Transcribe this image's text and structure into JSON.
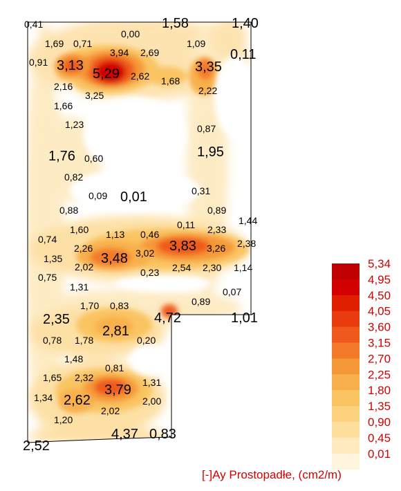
{
  "legend": {
    "title": "[-]Ay Prostopadłe, (cm2/m)",
    "levels": [
      {
        "label": "5,34",
        "color": "#c00000"
      },
      {
        "label": "4,95",
        "color": "#d20000"
      },
      {
        "label": "4,50",
        "color": "#e01e00"
      },
      {
        "label": "4,05",
        "color": "#e83c10"
      },
      {
        "label": "3,60",
        "color": "#ef5a1c"
      },
      {
        "label": "3,15",
        "color": "#f37a2a"
      },
      {
        "label": "2,70",
        "color": "#f59838"
      },
      {
        "label": "2,25",
        "color": "#f8b04c"
      },
      {
        "label": "1,80",
        "color": "#fac462"
      },
      {
        "label": "1,35",
        "color": "#fcd27e"
      },
      {
        "label": "0,90",
        "color": "#fddf9e"
      },
      {
        "label": "0,45",
        "color": "#feeabd"
      },
      {
        "label": "0,01",
        "color": "#fff5dc"
      }
    ]
  },
  "values": [
    "0,41",
    "1,58",
    "1,40",
    "1,69",
    "0,71",
    "0,00",
    "1,09",
    "3,94",
    "2,69",
    "0,11",
    "0,91",
    "3,13",
    "5,29",
    "2,62",
    "3,35",
    "1,68",
    "2,16",
    "3,25",
    "2,22",
    "1,66",
    "1,23",
    "0,87",
    "1,76",
    "0,60",
    "1,95",
    "0,82",
    "0,09",
    "0,01",
    "0,31",
    "0,88",
    "0,89",
    "1,44",
    "1,60",
    "1,13",
    "0,46",
    "0,11",
    "2,33",
    "0,74",
    "2,26",
    "3,48",
    "3,02",
    "3,83",
    "3,26",
    "2,38",
    "1,35",
    "2,02",
    "0,23",
    "2,54",
    "2,30",
    "1,14",
    "0,75",
    "1,31",
    "0,07",
    "1,70",
    "0,83",
    "0,89",
    "2,35",
    "2,81",
    "4,72",
    "1,01",
    "0,78",
    "1,78",
    "0,20",
    "1,48",
    "0,81",
    "1,65",
    "2,32",
    "1,31",
    "1,34",
    "2,62",
    "3,79",
    "2,00",
    "2,02",
    "1,20",
    "2,52",
    "4,37",
    "0,83"
  ]
}
